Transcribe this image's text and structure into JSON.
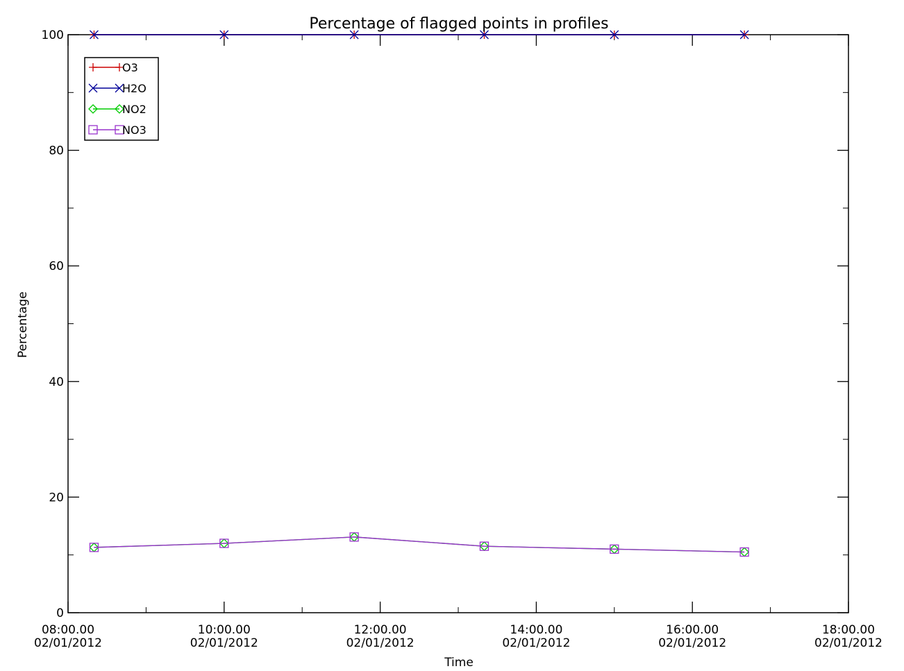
{
  "chart_data": {
    "type": "line",
    "title": "Percentage of flagged points in profiles",
    "xlabel": "Time",
    "ylabel": "Percentage",
    "xlim": [
      "02/01/2012 08:00",
      "02/01/2012 18:00"
    ],
    "ylim": [
      0,
      100
    ],
    "x_ticks": [
      {
        "time": "08:00.00",
        "date": "02/01/2012"
      },
      {
        "time": "10:00.00",
        "date": "02/01/2012"
      },
      {
        "time": "12:00.00",
        "date": "02/01/2012"
      },
      {
        "time": "14:00.00",
        "date": "02/01/2012"
      },
      {
        "time": "16:00.00",
        "date": "02/01/2012"
      },
      {
        "time": "18:00.00",
        "date": "02/01/2012"
      }
    ],
    "y_ticks": [
      0,
      20,
      40,
      60,
      80,
      100
    ],
    "x": [
      "02/01/2012 08:20",
      "02/01/2012 10:00",
      "02/01/2012 11:40",
      "02/01/2012 13:20",
      "02/01/2012 15:00",
      "02/01/2012 16:40"
    ],
    "series": [
      {
        "name": "O3",
        "color": "#cc0000",
        "marker": "plus",
        "values": [
          100,
          100,
          100,
          100,
          100,
          100
        ]
      },
      {
        "name": "H2O",
        "color": "#000099",
        "marker": "x",
        "values": [
          100,
          100,
          100,
          100,
          100,
          100
        ]
      },
      {
        "name": "NO2",
        "color": "#00cc00",
        "marker": "diamond",
        "values": [
          11.3,
          12.0,
          13.1,
          11.5,
          11.0,
          10.5
        ]
      },
      {
        "name": "NO3",
        "color": "#9933cc",
        "marker": "square",
        "values": [
          11.3,
          12.0,
          13.1,
          11.5,
          11.0,
          10.5
        ]
      }
    ],
    "legend": {
      "placement": "top-left"
    },
    "grid": false
  }
}
